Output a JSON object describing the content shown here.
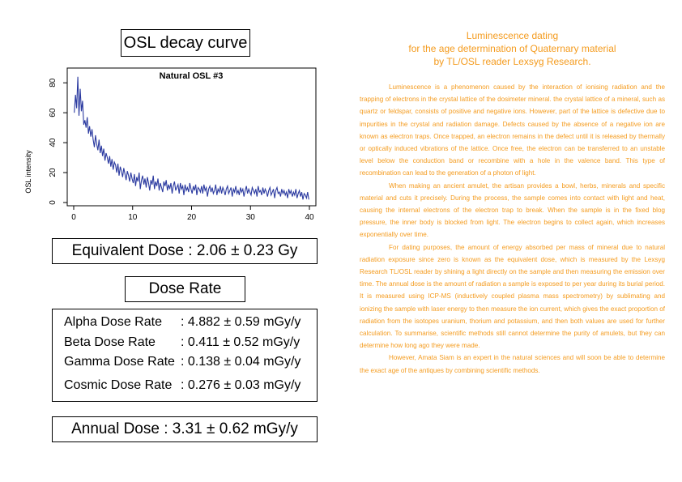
{
  "left_panel": {
    "chart_title": "OSL decay curve",
    "equivalent_dose": "Equivalent Dose : 2.06 ± 0.23 Gy",
    "dose_rate_title": "Dose Rate",
    "dose_rates": [
      {
        "label": "Alpha Dose Rate",
        "value": ": 4.882 ± 0.59 mGy/y"
      },
      {
        "label": "Beta Dose Rate",
        "value": ": 0.411 ± 0.52 mGy/y"
      },
      {
        "label": "Gamma Dose Rate",
        "value": ": 0.138 ± 0.04 mGy/y"
      },
      {
        "label": "Cosmic Dose Rate",
        "value": ": 0.276 ± 0.03 mGy/y"
      }
    ],
    "annual_dose": "Annual Dose : 3.31 ± 0.62 mGy/y"
  },
  "right_panel": {
    "title_lines": [
      "Luminescence dating",
      "for the age determination of Quaternary material",
      "by TL/OSL reader Lexsyg Research."
    ],
    "paragraphs": [
      "Luminescence is a phenomenon caused by the interaction of ionising radiation and the trapping of electrons in the crystal lattice of the dosimeter mineral. the crystal lattice of a mineral, such as quartz or feldspar, consists of positive and negative ions. However, part of the lattice is defective due to impurities in the crystal and radiation damage. Defects caused by the absence of a negative ion are known as electron traps. Once trapped, an electron remains in the defect until it is released by thermally or optically induced vibrations of the lattice. Once free, the electron can be transferred to an unstable level below the conduction band or recombine with a hole in the valence band. This type of recombination can lead to the generation of a photon of light.",
      "When making an ancient amulet, the artisan provides a bowl, herbs, minerals and specific material and cuts it precisely. During the process, the sample comes into contact with light and heat, causing the internal electrons of the electron trap to break. When the sample is in the fixed blog pressure, the inner body is blocked from light. The electron begins to collect again, which increases exponentially over time.",
      "For dating purposes, the amount of energy absorbed per mass of mineral due to natural radiation exposure since zero is known as the equivalent dose, which is measured by the Lexsyg Research TL/OSL reader by shining a light directly on the sample and then measuring the emission over time. The annual dose is the amount of radiation a sample is exposed to per year during its burial period. It is measured using ICP-MS (inductively coupled plasma mass spectrometry) by sublimating and ionizing the sample with laser energy to then measure the ion current, which gives the exact proportion of radiation from the isotopes uranium, thorium and potassium, and then both values are used for further calculation. To summarise, scientific methods still cannot determine the purity of amulets, but they can determine how long ago they were made.",
      "However, Amata Siam is an expert in the natural sciences and will soon be able to determine the exact age of the antiques by combining scientific methods."
    ],
    "text_color": "#f49b1e"
  },
  "chart_data": {
    "type": "line",
    "title": "Natural OSL #3",
    "xlabel": "",
    "ylabel": "OSL intensity",
    "xlim": [
      0,
      40
    ],
    "ylim": [
      0,
      85
    ],
    "xticks": [
      0,
      10,
      20,
      30,
      40
    ],
    "yticks": [
      0,
      20,
      40,
      60,
      80
    ],
    "line_color": "#2b3aa0",
    "grid": false,
    "x": [
      0.1,
      0.3,
      0.5,
      0.7,
      0.9,
      1.1,
      1.3,
      1.5,
      1.7,
      1.9,
      2.1,
      2.3,
      2.5,
      2.7,
      2.9,
      3.1,
      3.3,
      3.5,
      3.7,
      3.9,
      4.1,
      4.3,
      4.5,
      4.7,
      4.9,
      5.1,
      5.3,
      5.5,
      5.7,
      5.9,
      6.1,
      6.3,
      6.5,
      6.7,
      6.9,
      7.1,
      7.3,
      7.5,
      7.7,
      7.9,
      8.1,
      8.3,
      8.5,
      8.7,
      8.9,
      9.1,
      9.3,
      9.5,
      9.7,
      9.9,
      10.1,
      10.3,
      10.5,
      10.7,
      10.9,
      11.1,
      11.3,
      11.5,
      11.7,
      11.9,
      12.1,
      12.3,
      12.5,
      12.7,
      12.9,
      13.1,
      13.3,
      13.5,
      13.7,
      13.9,
      14.1,
      14.3,
      14.5,
      14.7,
      14.9,
      15.1,
      15.3,
      15.5,
      15.7,
      15.9,
      16.1,
      16.3,
      16.5,
      16.7,
      16.9,
      17.1,
      17.3,
      17.5,
      17.7,
      17.9,
      18.1,
      18.3,
      18.5,
      18.7,
      18.9,
      19.1,
      19.3,
      19.5,
      19.7,
      19.9,
      20.1,
      20.3,
      20.5,
      20.7,
      20.9,
      21.1,
      21.3,
      21.5,
      21.7,
      21.9,
      22.1,
      22.3,
      22.5,
      22.7,
      22.9,
      23.1,
      23.3,
      23.5,
      23.7,
      23.9,
      24.1,
      24.3,
      24.5,
      24.7,
      24.9,
      25.1,
      25.3,
      25.5,
      25.7,
      25.9,
      26.1,
      26.3,
      26.5,
      26.7,
      26.9,
      27.1,
      27.3,
      27.5,
      27.7,
      27.9,
      28.1,
      28.3,
      28.5,
      28.7,
      28.9,
      29.1,
      29.3,
      29.5,
      29.7,
      29.9,
      30.1,
      30.3,
      30.5,
      30.7,
      30.9,
      31.1,
      31.3,
      31.5,
      31.7,
      31.9,
      32.1,
      32.3,
      32.5,
      32.7,
      32.9,
      33.1,
      33.3,
      33.5,
      33.7,
      33.9,
      34.1,
      34.3,
      34.5,
      34.7,
      34.9,
      35.1,
      35.3,
      35.5,
      35.7,
      35.9,
      36.1,
      36.3,
      36.5,
      36.7,
      36.9,
      37.1,
      37.3,
      37.5,
      37.7,
      37.9,
      38.1,
      38.3,
      38.5,
      38.7,
      38.9,
      39.1,
      39.3,
      39.5,
      39.7,
      39.9
    ],
    "y": [
      60,
      72,
      63,
      84,
      58,
      76,
      61,
      68,
      52,
      55,
      50,
      57,
      46,
      51,
      44,
      49,
      42,
      37,
      45,
      39,
      35,
      42,
      33,
      38,
      31,
      36,
      28,
      33,
      30,
      26,
      31,
      24,
      29,
      22,
      27,
      25,
      20,
      26,
      18,
      24,
      21,
      17,
      23,
      19,
      15,
      21,
      18,
      14,
      20,
      16,
      13,
      19,
      11,
      17,
      14,
      20,
      9,
      15,
      18,
      12,
      16,
      10,
      17,
      13,
      8,
      15,
      12,
      18,
      9,
      14,
      11,
      16,
      8,
      13,
      10,
      7,
      14,
      11,
      15,
      8,
      12,
      9,
      13,
      6,
      11,
      14,
      8,
      10,
      12,
      6,
      13,
      9,
      11,
      5,
      12,
      8,
      10,
      7,
      13,
      9,
      6,
      11,
      8,
      12,
      5,
      10,
      9,
      7,
      11,
      6,
      12,
      8,
      10,
      4,
      9,
      11,
      7,
      10,
      6,
      8,
      12,
      5,
      9,
      7,
      11,
      6,
      10,
      8,
      5,
      9,
      11,
      6,
      8,
      10,
      4,
      9,
      7,
      11,
      6,
      8,
      5,
      10,
      7,
      9,
      4,
      8,
      11,
      6,
      9,
      7,
      5,
      10,
      8,
      6,
      9,
      4,
      11,
      7,
      8,
      5,
      10,
      6,
      9,
      7,
      4,
      8,
      10,
      5,
      7,
      9,
      3,
      8,
      10,
      6,
      7,
      4,
      9,
      6,
      8,
      5,
      7,
      3,
      9,
      6,
      8,
      4,
      7,
      5,
      9,
      3,
      6,
      8,
      4,
      7,
      2,
      6,
      5,
      3,
      7,
      2
    ]
  }
}
